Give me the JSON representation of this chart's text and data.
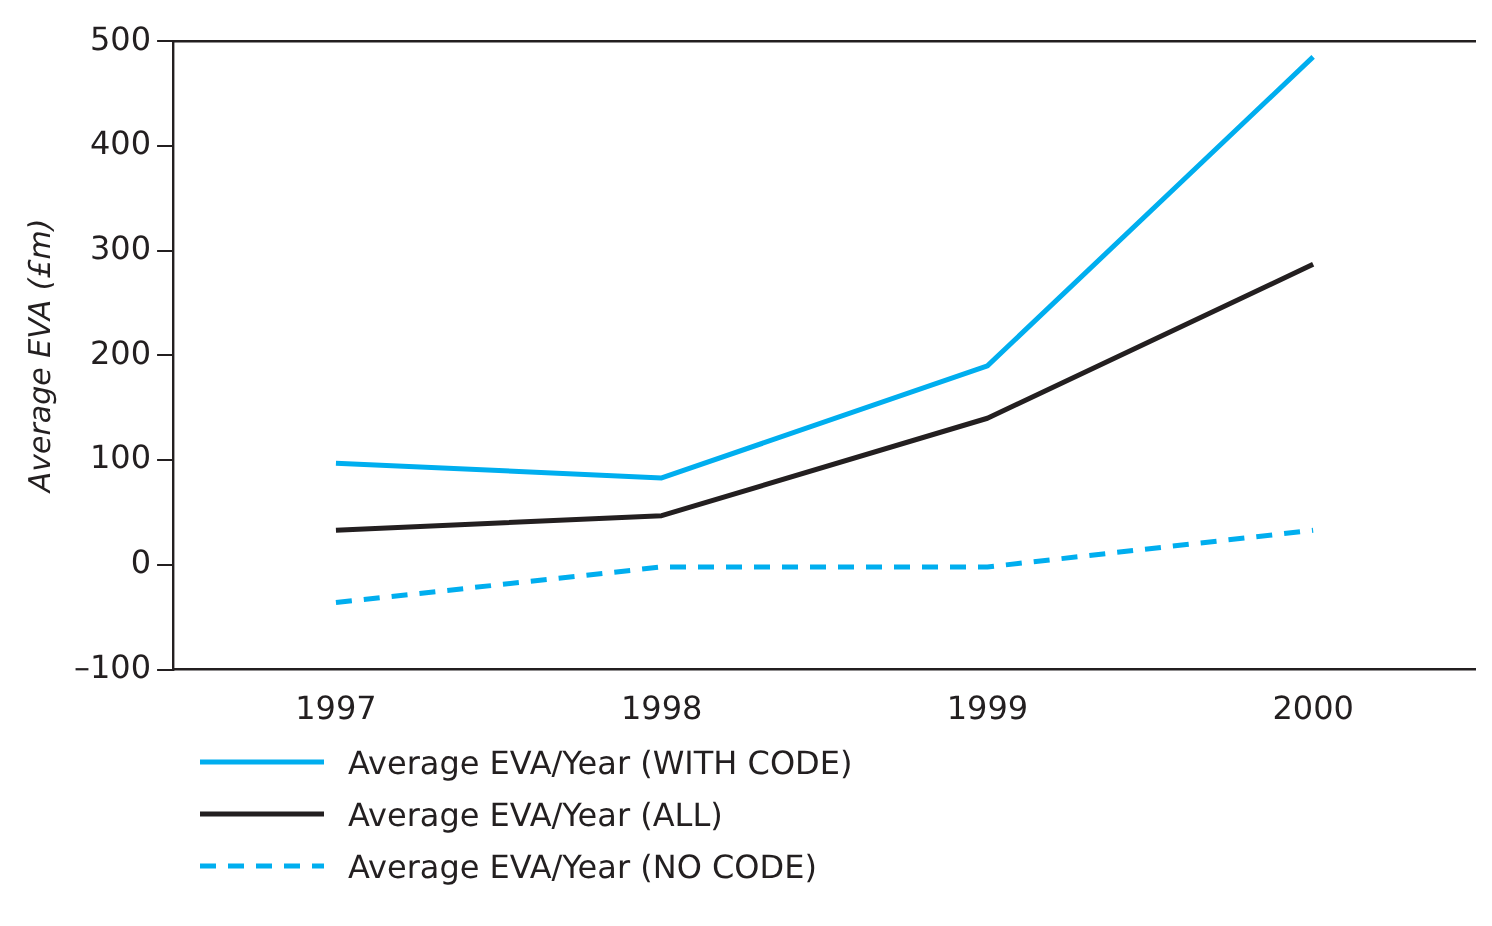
{
  "chart_data": {
    "type": "line",
    "ylabel": "Average EVA (£m)",
    "categories": [
      "1997",
      "1998",
      "1999",
      "2000"
    ],
    "series": [
      {
        "name": "Average EVA/Year (WITH CODE)",
        "color": "#00aeef",
        "values": [
          97,
          83,
          190,
          485
        ],
        "line_style": "solid"
      },
      {
        "name": "Average EVA/Year (ALL)",
        "color": "#231f20",
        "values": [
          33,
          47,
          140,
          287
        ],
        "line_style": "solid"
      },
      {
        "name": "Average EVA/Year (NO CODE)",
        "color": "#00aeef",
        "values": [
          -36,
          -2,
          -2,
          33
        ],
        "line_style": "dashed"
      }
    ],
    "ylim": [
      -100,
      500
    ],
    "yticks": [
      {
        "value": -100,
        "label": "–100"
      },
      0,
      100,
      200,
      300,
      400,
      500
    ],
    "grid": false,
    "legend": "bottom",
    "marker": "none"
  }
}
